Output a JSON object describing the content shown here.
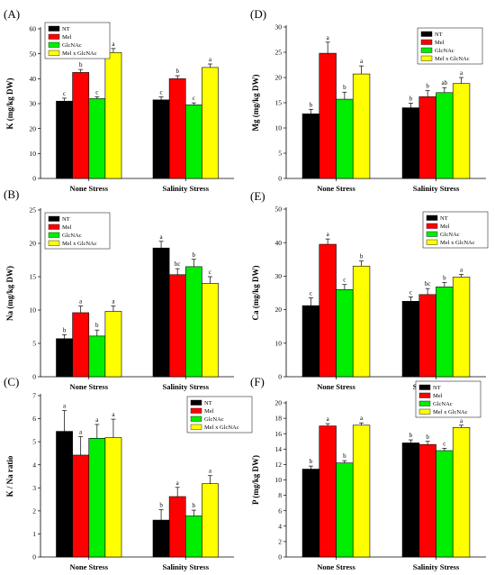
{
  "colors": {
    "NT": "#000000",
    "Mel": "#ff0000",
    "GlcNAc": "#00ee00",
    "MelxGlcNAc": "#ffff00"
  },
  "chart_data": [
    {
      "id": "A",
      "type": "bar",
      "panel_label": "(A)",
      "ylabel": "K (mg/kg DW)",
      "ylim": [
        0,
        60
      ],
      "yticks": [
        0,
        10,
        20,
        30,
        40,
        50,
        60
      ],
      "categories": [
        "None Stress",
        "Salinity Stress"
      ],
      "legend_position": "top-left",
      "series": [
        {
          "name": "NT",
          "values": [
            31,
            31.5
          ],
          "errors": [
            1.2,
            1.2
          ],
          "letters": [
            "c",
            "c"
          ]
        },
        {
          "name": "Mel",
          "values": [
            42.5,
            40
          ],
          "errors": [
            1.2,
            1.2
          ],
          "letters": [
            "b",
            "b"
          ]
        },
        {
          "name": "GlcNAc",
          "values": [
            32,
            29.5
          ],
          "errors": [
            0.8,
            0.8
          ],
          "letters": [
            "c",
            "c"
          ]
        },
        {
          "name": "Mel x GlcNAc",
          "values": [
            50.5,
            44.5
          ],
          "errors": [
            1.6,
            1.4
          ],
          "letters": [
            "a",
            "a"
          ]
        }
      ]
    },
    {
      "id": "D",
      "type": "bar",
      "panel_label": "(D)",
      "ylabel": "Mg (mg/kg DW)",
      "ylim": [
        0,
        30
      ],
      "yticks": [
        0,
        5,
        10,
        15,
        20,
        25,
        30
      ],
      "categories": [
        "None Stress",
        "Salinity Stress"
      ],
      "legend_position": "top-right",
      "series": [
        {
          "name": "NT",
          "values": [
            12.8,
            14
          ],
          "errors": [
            0.9,
            0.9
          ],
          "letters": [
            "b",
            "b"
          ]
        },
        {
          "name": "Mel",
          "values": [
            24.8,
            16.2
          ],
          "errors": [
            2.2,
            1.2
          ],
          "letters": [
            "a",
            "b"
          ]
        },
        {
          "name": "GlcNAc",
          "values": [
            15.7,
            17
          ],
          "errors": [
            1.4,
            1.0
          ],
          "letters": [
            "b",
            "ab"
          ]
        },
        {
          "name": "Mel x GlcNAc",
          "values": [
            20.7,
            18.8
          ],
          "errors": [
            1.6,
            1.2
          ],
          "letters": [
            "a",
            "a"
          ]
        }
      ]
    },
    {
      "id": "B",
      "type": "bar",
      "panel_label": "(B)",
      "ylabel": "Na (mg/kg DW)",
      "ylim": [
        0,
        25
      ],
      "yticks": [
        0,
        5,
        10,
        15,
        20,
        25
      ],
      "categories": [
        "None Stress",
        "Salinity Stress"
      ],
      "legend_position": "top-left",
      "series": [
        {
          "name": "NT",
          "values": [
            5.7,
            19.3
          ],
          "errors": [
            0.6,
            1.0
          ],
          "letters": [
            "b",
            "a"
          ]
        },
        {
          "name": "Mel",
          "values": [
            9.6,
            15.3
          ],
          "errors": [
            1.0,
            0.9
          ],
          "letters": [
            "a",
            "bc"
          ]
        },
        {
          "name": "GlcNAc",
          "values": [
            6.1,
            16.5
          ],
          "errors": [
            0.9,
            1.1
          ],
          "letters": [
            "b",
            "b"
          ]
        },
        {
          "name": "Mel x GlcNAc",
          "values": [
            9.8,
            14
          ],
          "errors": [
            0.8,
            1.0
          ],
          "letters": [
            "a",
            "c"
          ]
        }
      ]
    },
    {
      "id": "E",
      "type": "bar",
      "panel_label": "(E)",
      "ylabel": "Ca (mg/kg DW)",
      "ylim": [
        0,
        50
      ],
      "yticks": [
        0,
        10,
        20,
        30,
        40,
        50
      ],
      "categories": [
        "None Stress",
        "Salinity Stress"
      ],
      "legend_position": "top-right",
      "series": [
        {
          "name": "NT",
          "values": [
            21.2,
            22.5
          ],
          "errors": [
            2.3,
            1.3
          ],
          "letters": [
            "c",
            "c"
          ]
        },
        {
          "name": "Mel",
          "values": [
            39.5,
            24.5
          ],
          "errors": [
            1.6,
            1.8
          ],
          "letters": [
            "a",
            "bc"
          ]
        },
        {
          "name": "GlcNAc",
          "values": [
            26,
            26.8
          ],
          "errors": [
            1.5,
            1.3
          ],
          "letters": [
            "c",
            "b"
          ]
        },
        {
          "name": "Mel x GlcNAc",
          "values": [
            33,
            29.7
          ],
          "errors": [
            1.5,
            0.8
          ],
          "letters": [
            "b",
            "a"
          ]
        }
      ]
    },
    {
      "id": "C",
      "type": "bar",
      "panel_label": "(C)",
      "ylabel": "K / Na ratio",
      "ylim": [
        0,
        7
      ],
      "yticks": [
        0,
        1,
        2,
        3,
        4,
        5,
        6,
        7
      ],
      "categories": [
        "None Stress",
        "Salinity Stress"
      ],
      "legend_position": "top-right",
      "series": [
        {
          "name": "NT",
          "values": [
            5.45,
            1.6
          ],
          "errors": [
            0.9,
            0.45
          ],
          "letters": [
            "a",
            "b"
          ]
        },
        {
          "name": "Mel",
          "values": [
            4.42,
            2.62
          ],
          "errors": [
            0.8,
            0.4
          ],
          "letters": [
            "a",
            "a"
          ]
        },
        {
          "name": "GlcNAc",
          "values": [
            5.15,
            1.78
          ],
          "errors": [
            0.6,
            0.25
          ],
          "letters": [
            "a",
            "b"
          ]
        },
        {
          "name": "Mel x GlcNAc",
          "values": [
            5.18,
            3.18
          ],
          "errors": [
            0.8,
            0.35
          ],
          "letters": [
            "a",
            "a"
          ]
        }
      ]
    },
    {
      "id": "F",
      "type": "bar",
      "panel_label": "(F)",
      "ylabel": "P (mg/kg DW)",
      "ylim": [
        0,
        20
      ],
      "yticks": [
        0,
        2,
        4,
        6,
        8,
        10,
        12,
        14,
        16,
        18,
        20
      ],
      "categories": [
        "None Stress",
        "Salinity Stress"
      ],
      "legend_position": "top-right",
      "series": [
        {
          "name": "NT",
          "values": [
            11.4,
            14.8
          ],
          "errors": [
            0.4,
            0.4
          ],
          "letters": [
            "b",
            "b"
          ]
        },
        {
          "name": "Mel",
          "values": [
            17,
            14.6
          ],
          "errors": [
            0.3,
            0.4
          ],
          "letters": [
            "a",
            "b"
          ]
        },
        {
          "name": "GlcNAc",
          "values": [
            12.2,
            13.8
          ],
          "errors": [
            0.3,
            0.3
          ],
          "letters": [
            "b",
            "c"
          ]
        },
        {
          "name": "Mel x GlcNAc",
          "values": [
            17.1,
            16.8
          ],
          "errors": [
            0.3,
            0.3
          ],
          "letters": [
            "a",
            "a"
          ]
        }
      ]
    }
  ]
}
